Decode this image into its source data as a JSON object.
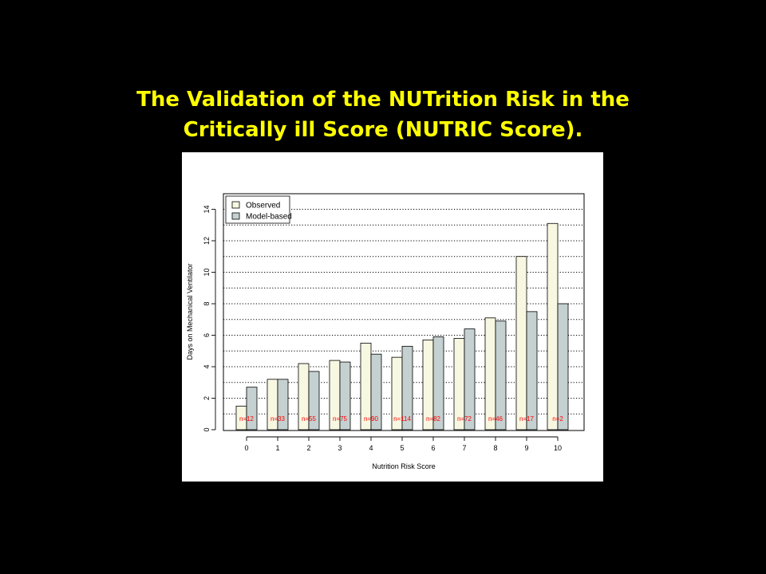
{
  "slide": {
    "title_line1": "The Validation of the NUTrition Risk in the",
    "title_line2": "Critically ill Score (NUTRIC Score)."
  },
  "chart_data": {
    "type": "bar",
    "title": "",
    "xlabel": "Nutrition Risk Score",
    "ylabel": "Days on Mechanical Ventilator",
    "categories": [
      "0",
      "1",
      "2",
      "3",
      "4",
      "5",
      "6",
      "7",
      "8",
      "9",
      "10"
    ],
    "ylim": [
      0,
      15
    ],
    "yticks": [
      0,
      2,
      4,
      6,
      8,
      10,
      12,
      14
    ],
    "grid": "horizontal-dotted",
    "legend_position": "top-left",
    "series": [
      {
        "name": "Observed",
        "color": "#f8f8e2",
        "values": [
          1.5,
          3.2,
          4.2,
          4.4,
          5.5,
          4.6,
          5.7,
          5.8,
          7.1,
          11.0,
          13.1
        ]
      },
      {
        "name": "Model-based",
        "color": "#c5d0d0",
        "values": [
          2.7,
          3.2,
          3.7,
          4.3,
          4.8,
          5.3,
          5.9,
          6.4,
          6.9,
          7.5,
          8.0
        ]
      }
    ],
    "annotations": [
      "n=12",
      "n=33",
      "n=55",
      "n=75",
      "n=90",
      "n=114",
      "n=82",
      "n=72",
      "n=46",
      "n=17",
      "n=2"
    ],
    "annotation_color": "#ff0000"
  }
}
